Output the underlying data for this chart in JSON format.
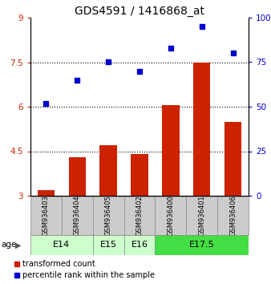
{
  "title": "GDS4591 / 1416868_at",
  "samples": [
    "GSM936403",
    "GSM936404",
    "GSM936405",
    "GSM936402",
    "GSM936400",
    "GSM936401",
    "GSM936406"
  ],
  "transformed_count": [
    3.2,
    4.3,
    4.7,
    4.4,
    6.05,
    7.5,
    5.5
  ],
  "percentile_rank": [
    52,
    65,
    75,
    70,
    83,
    95,
    80
  ],
  "bar_color": "#cc2200",
  "dot_color": "#0000cc",
  "ylim_left": [
    3,
    9
  ],
  "ylim_right": [
    0,
    100
  ],
  "yticks_left": [
    3,
    4.5,
    6,
    7.5,
    9
  ],
  "yticks_right": [
    0,
    25,
    50,
    75,
    100
  ],
  "ytick_labels_left": [
    "3",
    "4.5",
    "6",
    "7.5",
    "9"
  ],
  "ytick_labels_right": [
    "0",
    "25",
    "50",
    "75",
    "100%"
  ],
  "hlines": [
    4.5,
    6.0,
    7.5
  ],
  "age_groups": [
    {
      "label": "E14",
      "samples": [
        0,
        1
      ],
      "color": "#ccffcc"
    },
    {
      "label": "E15",
      "samples": [
        2
      ],
      "color": "#ccffcc"
    },
    {
      "label": "E16",
      "samples": [
        3
      ],
      "color": "#ccffcc"
    },
    {
      "label": "E17.5",
      "samples": [
        4,
        5,
        6
      ],
      "color": "#44dd44"
    }
  ],
  "legend_bar_label": "transformed count",
  "legend_dot_label": "percentile rank within the sample",
  "age_label": "age",
  "title_fontsize": 10,
  "axis_label_color_left": "#cc2200",
  "axis_label_color_right": "#0000cc",
  "sample_box_color": "#cccccc",
  "border_color": "#888888"
}
